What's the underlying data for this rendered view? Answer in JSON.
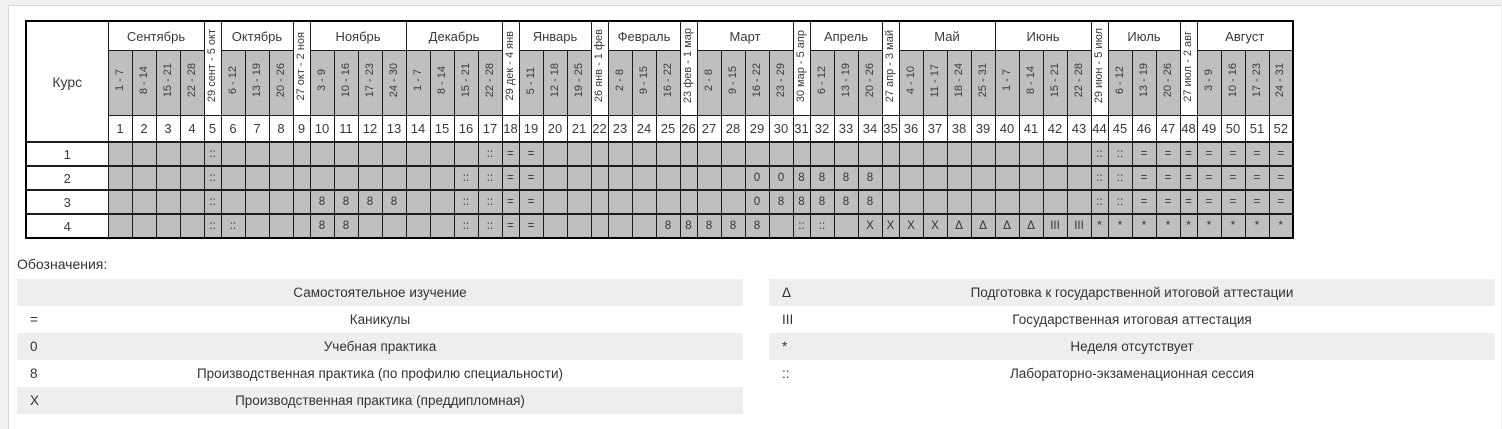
{
  "calendar": {
    "course_column_label": "Курс",
    "months": [
      {
        "label": "Сентябрь",
        "span": 4
      },
      {
        "label": "29 сент - 5 окт",
        "bridge": true
      },
      {
        "label": "Октябрь",
        "span": 3
      },
      {
        "label": "27 окт - 2 ноя",
        "bridge": true
      },
      {
        "label": "Ноябрь",
        "span": 4
      },
      {
        "label": "Декабрь",
        "span": 4
      },
      {
        "label": "29 дек - 4 янв",
        "bridge": true
      },
      {
        "label": "Январь",
        "span": 3
      },
      {
        "label": "26 янв - 1 фев",
        "bridge": true
      },
      {
        "label": "Февраль",
        "span": 3
      },
      {
        "label": "23 фев - 1 мар",
        "bridge": true
      },
      {
        "label": "Март",
        "span": 4
      },
      {
        "label": "30 мар - 5 апр",
        "bridge": true
      },
      {
        "label": "Апрель",
        "span": 3
      },
      {
        "label": "27 апр - 3 май",
        "bridge": true
      },
      {
        "label": "Май",
        "span": 4
      },
      {
        "label": "Июнь",
        "span": 4
      },
      {
        "label": "29 июн - 5 июл",
        "bridge": true
      },
      {
        "label": "Июль",
        "span": 3
      },
      {
        "label": "27 июл - 2 авг",
        "bridge": true
      },
      {
        "label": "Август",
        "span": 4
      }
    ],
    "week_ranges": [
      "1 - 7",
      "8 - 14",
      "15 - 21",
      "22 - 28",
      null,
      "6 - 12",
      "13 - 19",
      "20 - 26",
      null,
      "3 - 9",
      "10 - 16",
      "17 - 23",
      "24 - 30",
      "1 - 7",
      "8 - 14",
      "15 - 21",
      "22 - 28",
      null,
      "5 - 11",
      "12 - 18",
      "19 - 25",
      null,
      "2 - 8",
      "9 - 15",
      "16 - 22",
      null,
      "2 - 8",
      "9 - 15",
      "16 - 22",
      "23 - 29",
      null,
      "6 - 12",
      "13 - 19",
      "20 - 26",
      null,
      "4 - 10",
      "11 - 17",
      "18 - 24",
      "25 - 31",
      "1 - 7",
      "8 - 14",
      "15 - 21",
      "22 - 28",
      null,
      "6 - 12",
      "13 - 19",
      "20 - 26",
      null,
      "3 - 9",
      "10 - 16",
      "17 - 23",
      "24 - 31"
    ],
    "week_numbers": [
      1,
      2,
      3,
      4,
      5,
      6,
      7,
      8,
      9,
      10,
      11,
      12,
      13,
      14,
      15,
      16,
      17,
      18,
      19,
      20,
      21,
      22,
      23,
      24,
      25,
      26,
      27,
      28,
      29,
      30,
      31,
      32,
      33,
      34,
      35,
      36,
      37,
      38,
      39,
      40,
      41,
      42,
      43,
      44,
      45,
      46,
      47,
      48,
      49,
      50,
      51,
      52
    ],
    "rows": [
      {
        "course": "1",
        "cells": [
          "",
          "",
          "",
          "",
          "::",
          "",
          "",
          "",
          "",
          "",
          "",
          "",
          "",
          "",
          "",
          "",
          "::",
          "=",
          "=",
          "",
          "",
          "",
          "",
          "",
          "",
          "",
          "",
          "",
          "",
          "",
          "",
          "",
          "",
          "",
          "",
          "",
          "",
          "",
          "",
          "",
          "",
          "",
          "",
          "::",
          "::",
          "=",
          "=",
          "=",
          "=",
          "=",
          "=",
          "="
        ]
      },
      {
        "course": "2",
        "cells": [
          "",
          "",
          "",
          "",
          "::",
          "",
          "",
          "",
          "",
          "",
          "",
          "",
          "",
          "",
          "",
          "::",
          "::",
          "=",
          "=",
          "",
          "",
          "",
          "",
          "",
          "",
          "",
          "",
          "",
          "0",
          "0",
          "8",
          "8",
          "8",
          "8",
          "",
          "",
          "",
          "",
          "",
          "",
          "",
          "",
          "",
          "::",
          "::",
          "=",
          "=",
          "=",
          "=",
          "=",
          "=",
          "="
        ]
      },
      {
        "course": "3",
        "cells": [
          "",
          "",
          "",
          "",
          "::",
          "",
          "",
          "",
          "",
          "8",
          "8",
          "8",
          "8",
          "",
          "",
          "::",
          "::",
          "=",
          "=",
          "",
          "",
          "",
          "",
          "",
          "",
          "",
          "",
          "",
          "0",
          "8",
          "8",
          "8",
          "8",
          "8",
          "",
          "",
          "",
          "",
          "",
          "",
          "",
          "",
          "",
          "::",
          "::",
          "=",
          "=",
          "=",
          "=",
          "=",
          "=",
          "="
        ]
      },
      {
        "course": "4",
        "cells": [
          "",
          "",
          "",
          "",
          "::",
          "::",
          "",
          "",
          "",
          "8",
          "8",
          "",
          "",
          "",
          "",
          "::",
          "::",
          "=",
          "=",
          "",
          "",
          "",
          "",
          "",
          "8",
          "8",
          "8",
          "8",
          "8",
          "",
          "::",
          "::",
          "",
          "X",
          "X",
          "X",
          "X",
          "Δ",
          "Δ",
          "Δ",
          "Δ",
          "III",
          "III",
          "*",
          "*",
          "*",
          "*",
          "*",
          "*",
          "*",
          "*",
          "*"
        ]
      }
    ]
  },
  "legend": {
    "title": "Обозначения:",
    "left": [
      {
        "symbol": "",
        "label": "Самостоятельное изучение"
      },
      {
        "symbol": "=",
        "label": "Каникулы"
      },
      {
        "symbol": "0",
        "label": "Учебная практика"
      },
      {
        "symbol": "8",
        "label": "Производственная практика (по профилю специальности)"
      },
      {
        "symbol": "X",
        "label": "Производственная практика (преддипломная)"
      }
    ],
    "right": [
      {
        "symbol": "Δ",
        "label": "Подготовка к государственной итоговой аттестации"
      },
      {
        "symbol": "III",
        "label": "Государственная итоговая аттестация"
      },
      {
        "symbol": "*",
        "label": "Неделя отсутствует"
      },
      {
        "symbol": "::",
        "label": "Лабораторно-экзаменационная сессия"
      }
    ]
  },
  "colors": {
    "week_cell_gray": "#bfbfbf",
    "legend_stripe_gray": "#eeeeee",
    "grid_border": "#1c1c1c",
    "panel_border": "#d9d9d9",
    "text": "#3a3a3a"
  }
}
